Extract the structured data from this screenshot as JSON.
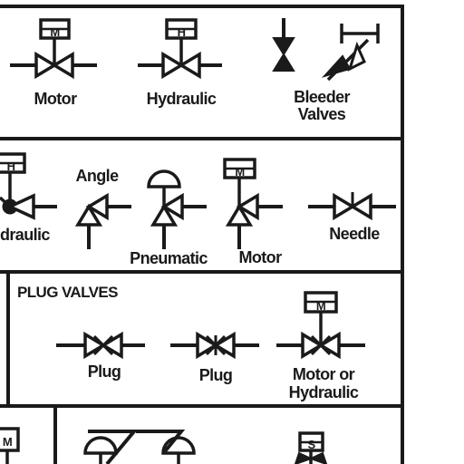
{
  "labels": {
    "motor": "Motor",
    "hydraulic": "Hydraulic",
    "bleeder_line1": "Bleeder",
    "bleeder_line2": "Valves",
    "angle": "Angle",
    "draulic": "draulic",
    "pneumatic": "Pneumatic",
    "motor2": "Motor",
    "needle": "Needle",
    "plug_valves": "PLUG VALVES",
    "plug1": "Plug",
    "plug2": "Plug",
    "motor_or": "Motor or",
    "hydraulic2": "Hydraulic"
  },
  "actuator_letters": {
    "motor": "M",
    "hydraulic": "H",
    "hydraulic_left": "H",
    "angle_motor": "M",
    "plug_motor": "M",
    "bottom_left": "M",
    "bottom_solenoid": "S"
  }
}
